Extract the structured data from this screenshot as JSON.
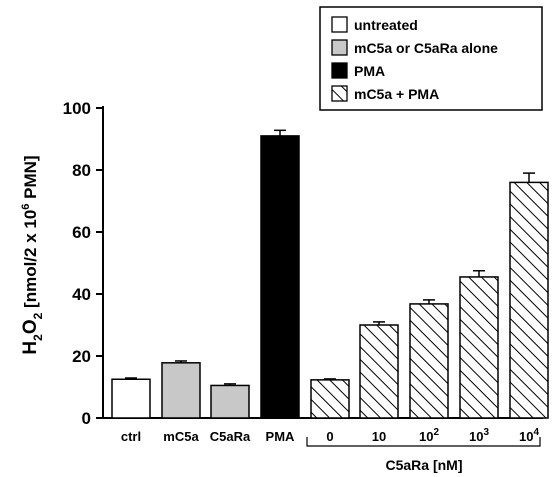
{
  "chart_data": {
    "type": "bar",
    "ylabel_main": "H",
    "ylabel_sub": "2",
    "ylabel_o": "O",
    "ylabel_sub2": "2",
    "ylabel_rest": "  [nmol/2 x 10",
    "ylabel_sup": "6",
    "ylabel_end": " PMN]",
    "ylim": [
      0,
      100
    ],
    "yticks": [
      "0",
      "20",
      "40",
      "60",
      "80",
      "100"
    ],
    "bars": [
      {
        "label": "ctrl",
        "value": 12.5,
        "error": 0.4,
        "style": "untreated"
      },
      {
        "label": "mC5a",
        "value": 17.8,
        "error": 0.6,
        "style": "alone"
      },
      {
        "label": "C5aRa",
        "value": 10.5,
        "error": 0.5,
        "style": "alone"
      },
      {
        "label": "PMA",
        "value": 91.0,
        "error": 1.8,
        "style": "pma"
      },
      {
        "label": "0",
        "value": 12.3,
        "error": 0.3,
        "style": "hatch"
      },
      {
        "label": "10",
        "value": 30.0,
        "error": 1.0,
        "style": "hatch"
      },
      {
        "label": "10",
        "sup": "2",
        "value": 36.8,
        "error": 1.3,
        "style": "hatch"
      },
      {
        "label": "10",
        "sup": "3",
        "value": 45.5,
        "error": 2.0,
        "style": "hatch"
      },
      {
        "label": "10",
        "sup": "4",
        "value": 76.0,
        "error": 3.0,
        "style": "hatch"
      }
    ],
    "legend": [
      {
        "label": "untreated",
        "style": "untreated"
      },
      {
        "label": "mC5a or C5aRa alone",
        "style": "alone"
      },
      {
        "label": "PMA",
        "style": "pma"
      },
      {
        "label": "mC5a + PMA",
        "style": "hatch"
      }
    ],
    "bracket_label": "C5aRa [nM]",
    "legend_position": "top-right",
    "grid": false
  },
  "colors": {
    "untreated": "#ffffff",
    "alone": "#c8c8c8",
    "pma": "#000000",
    "hatch": "#ffffff",
    "axis": "#000000"
  }
}
